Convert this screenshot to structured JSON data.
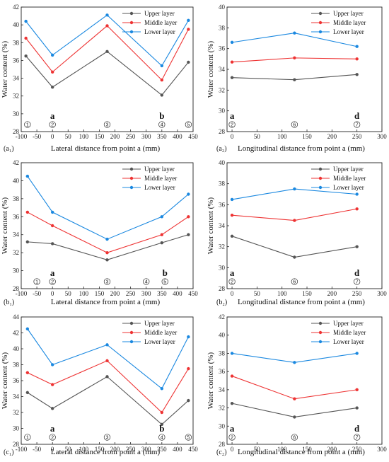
{
  "colors": {
    "upper": "#555555",
    "middle": "#ee3333",
    "lower": "#1a88e0"
  },
  "chart_data": [
    {
      "id": "a1",
      "type": "line",
      "panel_label": "(a₁)",
      "xlabel": "Lateral distance from point a (mm)",
      "ylabel": "Water content (%)",
      "xlim": [
        -100,
        450
      ],
      "ylim": [
        28,
        42
      ],
      "xticks": [
        -100,
        -50,
        0,
        50,
        100,
        150,
        200,
        250,
        300,
        350,
        400,
        450
      ],
      "yticks": [
        28,
        30,
        32,
        34,
        36,
        38,
        40,
        42
      ],
      "x": [
        -85,
        0,
        175,
        350,
        435
      ],
      "series": [
        {
          "name": "Upper layer",
          "values": [
            36.5,
            33.0,
            37.0,
            32.1,
            35.8
          ]
        },
        {
          "name": "Middle layer",
          "values": [
            38.5,
            34.7,
            39.9,
            33.8,
            39.5
          ]
        },
        {
          "name": "Lower layer",
          "values": [
            40.4,
            36.6,
            41.1,
            35.4,
            40.5
          ]
        }
      ],
      "points": [
        {
          "num": "1",
          "x": -80,
          "letter": ""
        },
        {
          "num": "2",
          "x": 0,
          "letter": "a"
        },
        {
          "num": "3",
          "x": 175,
          "letter": ""
        },
        {
          "num": "4",
          "x": 350,
          "letter": "b"
        },
        {
          "num": "5",
          "x": 435,
          "letter": ""
        }
      ]
    },
    {
      "id": "a2",
      "type": "line",
      "panel_label": "(a₂)",
      "xlabel": "Longitudinal distance from point a (mm)",
      "ylabel": "Water content (%)",
      "xlim": [
        -10,
        300
      ],
      "ylim": [
        28,
        40
      ],
      "xticks": [
        0,
        50,
        100,
        150,
        200,
        250,
        300
      ],
      "yticks": [
        28,
        30,
        32,
        34,
        36,
        38,
        40
      ],
      "x": [
        0,
        125,
        250
      ],
      "series": [
        {
          "name": "Upper layer",
          "values": [
            33.2,
            33.0,
            33.5
          ]
        },
        {
          "name": "Middle layer",
          "values": [
            34.7,
            35.1,
            35.0
          ]
        },
        {
          "name": "Lower layer",
          "values": [
            36.6,
            37.5,
            36.2
          ]
        }
      ],
      "points": [
        {
          "num": "2",
          "x": 0,
          "letter": "a"
        },
        {
          "num": "6",
          "x": 125,
          "letter": ""
        },
        {
          "num": "7",
          "x": 250,
          "letter": "d"
        }
      ]
    },
    {
      "id": "b1",
      "type": "line",
      "panel_label": "(b₁)",
      "xlabel": "Lateral distance from point a (mm)",
      "ylabel": "Water content (%)",
      "xlim": [
        -100,
        450
      ],
      "ylim": [
        28,
        42
      ],
      "xticks": [
        -100,
        -50,
        0,
        50,
        100,
        150,
        200,
        250,
        300,
        350,
        400,
        450
      ],
      "yticks": [
        28,
        30,
        32,
        34,
        36,
        38,
        40,
        42
      ],
      "x": [
        -80,
        0,
        175,
        350,
        435
      ],
      "series": [
        {
          "name": "Upper layer",
          "values": [
            33.2,
            33.0,
            31.2,
            33.1,
            34.0
          ]
        },
        {
          "name": "Middle layer",
          "values": [
            36.5,
            35.0,
            32.0,
            34.0,
            36.0
          ]
        },
        {
          "name": "Lower layer",
          "values": [
            40.5,
            36.5,
            33.5,
            36.0,
            38.5
          ]
        }
      ],
      "points": [
        {
          "num": "1",
          "x": -50,
          "letter": ""
        },
        {
          "num": "2",
          "x": 0,
          "letter": "a"
        },
        {
          "num": "3",
          "x": 175,
          "letter": ""
        },
        {
          "num": "4",
          "x": 300,
          "letter": ""
        },
        {
          "num": "5",
          "x": 360,
          "letter": "b"
        }
      ]
    },
    {
      "id": "b2",
      "type": "line",
      "panel_label": "(b₂)",
      "xlabel": "Longitudinal distance from point a (mm)",
      "ylabel": "Water content (%)",
      "xlim": [
        -10,
        300
      ],
      "ylim": [
        28,
        40
      ],
      "xticks": [
        0,
        50,
        100,
        150,
        200,
        250,
        300
      ],
      "yticks": [
        28,
        30,
        32,
        34,
        36,
        38,
        40
      ],
      "x": [
        0,
        125,
        250
      ],
      "series": [
        {
          "name": "Upper layer",
          "values": [
            33.0,
            31.0,
            32.0
          ]
        },
        {
          "name": "Middle layer",
          "values": [
            35.0,
            34.5,
            35.6
          ]
        },
        {
          "name": "Lower layer",
          "values": [
            36.5,
            37.5,
            37.0
          ]
        }
      ],
      "points": [
        {
          "num": "2",
          "x": 0,
          "letter": "a"
        },
        {
          "num": "6",
          "x": 125,
          "letter": ""
        },
        {
          "num": "7",
          "x": 250,
          "letter": "d"
        }
      ]
    },
    {
      "id": "c1",
      "type": "line",
      "panel_label": "(c₁)",
      "xlabel": "Lateral distance from point a (mm)",
      "ylabel": "Water content (%)",
      "xlim": [
        -100,
        450
      ],
      "ylim": [
        28,
        44
      ],
      "xticks": [
        -100,
        -50,
        0,
        50,
        100,
        150,
        200,
        250,
        300,
        350,
        400,
        450
      ],
      "yticks": [
        28,
        30,
        32,
        34,
        36,
        38,
        40,
        42,
        44
      ],
      "x": [
        -80,
        0,
        175,
        350,
        435
      ],
      "series": [
        {
          "name": "Upper layer",
          "values": [
            34.5,
            32.5,
            36.5,
            30.5,
            33.5
          ]
        },
        {
          "name": "Middle layer",
          "values": [
            37.0,
            35.5,
            38.5,
            32.0,
            37.5
          ]
        },
        {
          "name": "Lower layer",
          "values": [
            42.5,
            38.0,
            40.5,
            35.0,
            41.5
          ]
        }
      ],
      "points": [
        {
          "num": "1",
          "x": -80,
          "letter": ""
        },
        {
          "num": "2",
          "x": 0,
          "letter": "a"
        },
        {
          "num": "3",
          "x": 175,
          "letter": ""
        },
        {
          "num": "4",
          "x": 350,
          "letter": "b"
        },
        {
          "num": "5",
          "x": 435,
          "letter": ""
        }
      ]
    },
    {
      "id": "c2",
      "type": "line",
      "panel_label": "(c₂)",
      "xlabel": "Longitudinal distance from point a (mm)",
      "ylabel": "Water content (%)",
      "xlim": [
        -10,
        300
      ],
      "ylim": [
        28,
        42
      ],
      "xticks": [
        0,
        50,
        100,
        150,
        200,
        250,
        300
      ],
      "yticks": [
        28,
        30,
        32,
        34,
        36,
        38,
        40,
        42
      ],
      "x": [
        0,
        125,
        250
      ],
      "series": [
        {
          "name": "Upper layer",
          "values": [
            32.5,
            31.0,
            32.0
          ]
        },
        {
          "name": "Middle layer",
          "values": [
            35.5,
            33.0,
            34.0
          ]
        },
        {
          "name": "Lower layer",
          "values": [
            38.0,
            37.0,
            38.0
          ]
        }
      ],
      "points": [
        {
          "num": "2",
          "x": 0,
          "letter": "a"
        },
        {
          "num": "6",
          "x": 125,
          "letter": ""
        },
        {
          "num": "7",
          "x": 250,
          "letter": "d"
        }
      ]
    }
  ]
}
